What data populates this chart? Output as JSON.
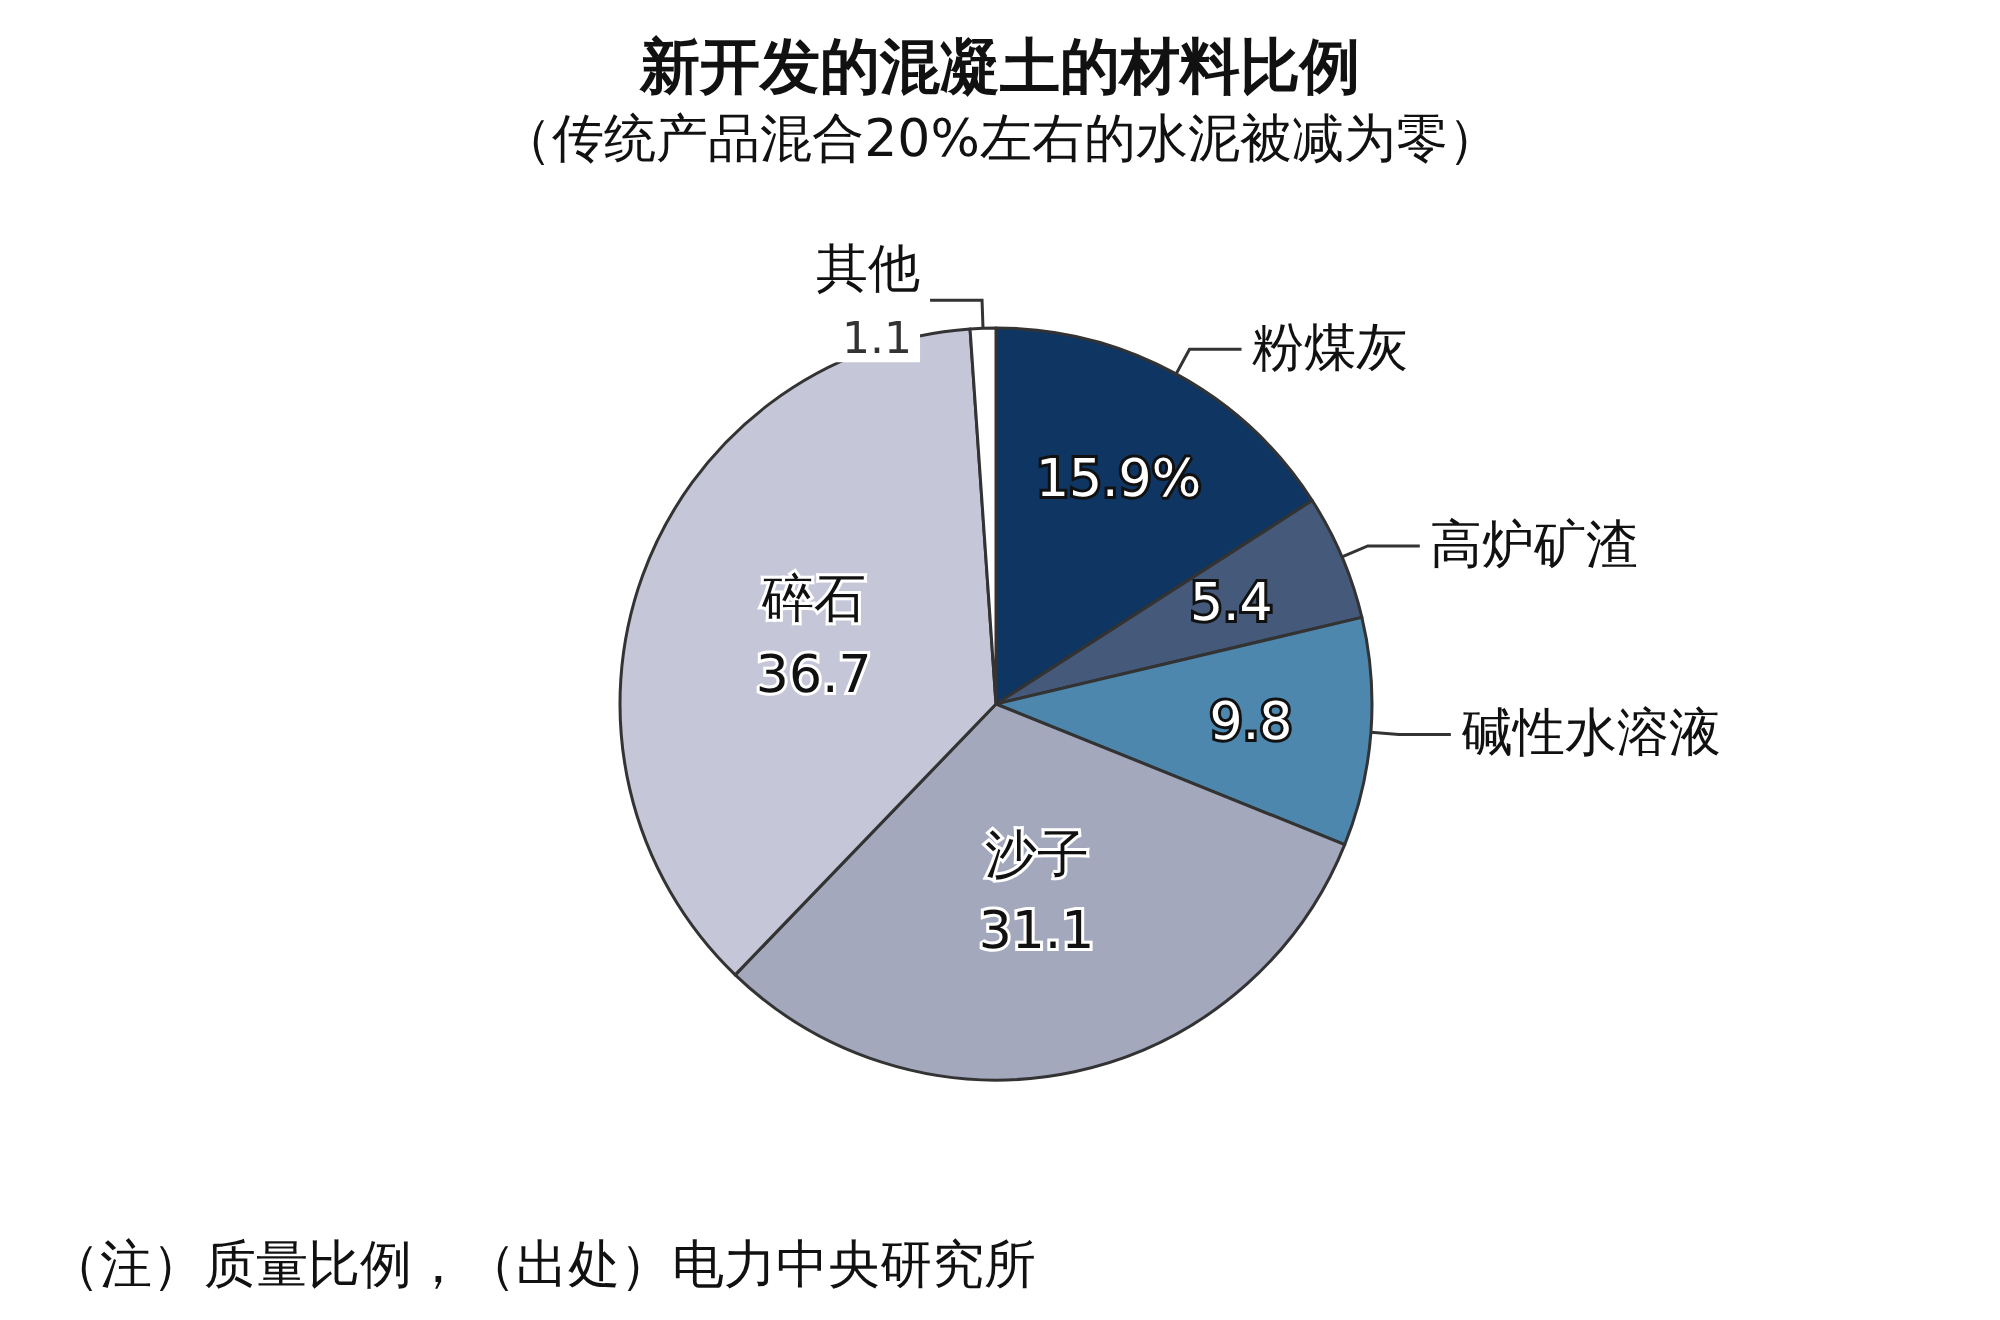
{
  "chart_data": {
    "type": "pie",
    "title": "新开发的混凝土的材料比例",
    "subtitle": "（传统产品混合20%左右的水泥被减为零）",
    "categories": [
      "粉煤灰",
      "高炉矿渣",
      "碱性水溶液",
      "沙子",
      "碎石",
      "其他"
    ],
    "values": [
      15.9,
      5.4,
      9.8,
      31.1,
      36.7,
      1.1
    ],
    "value_labels": [
      "15.9%",
      "5.4",
      "9.8",
      "31.1",
      "36.7",
      "1.1"
    ],
    "colors": [
      "#0f3563",
      "#45597a",
      "#4d87ae",
      "#a4a8bd",
      "#c5c7d8",
      "#ffffff"
    ],
    "annotations": [
      "（注）质量比例，（出处）电力中央研究所"
    ]
  }
}
